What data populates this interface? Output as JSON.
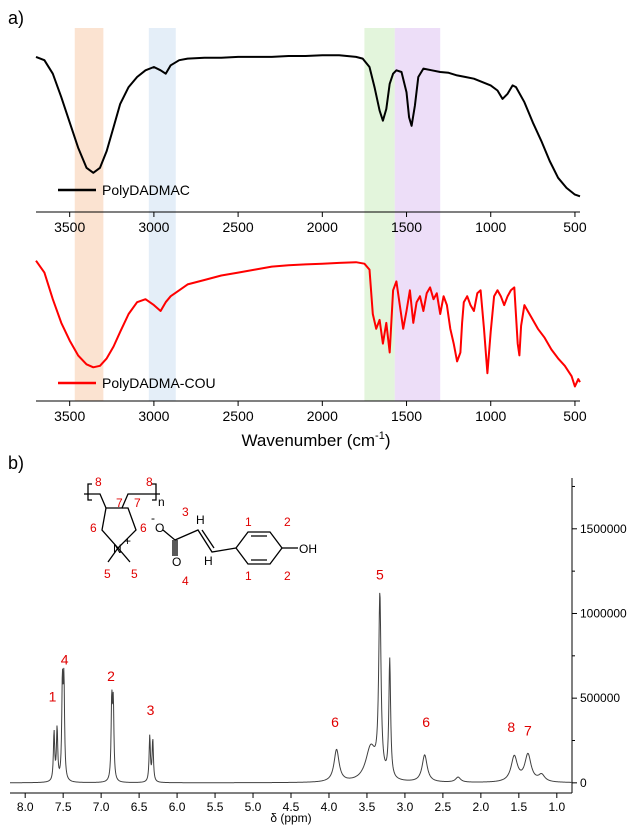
{
  "panel_a": {
    "label": "a)",
    "x_axis_label": "Wavenumber (cm",
    "x_axis_label_sup": "-1",
    "x_axis_label_close": ")",
    "highlight_colors": [
      "#f9d9c2",
      "#dbe8f6",
      "#d9f2d0",
      "#e7d3f5"
    ]
  },
  "panel_b": {
    "label": "b)",
    "x_axis_label": "δ (ppm)"
  },
  "molecule": {
    "atom_N": "N",
    "charge_plus": "+",
    "charge_minus": "-",
    "atom_O1": "O",
    "atom_O2": "O",
    "atom_H1": "H",
    "atom_H2": "H",
    "atom_OH": "OH",
    "subscript_n": "n",
    "num_8a": "8",
    "num_8b": "8",
    "num_7a": "7",
    "num_7b": "7",
    "num_6a": "6",
    "num_6b": "6",
    "num_5a": "5",
    "num_5b": "5",
    "num_3": "3",
    "num_4": "4",
    "num_1a": "1",
    "num_2a": "2",
    "num_1b": "1",
    "num_2b": "2"
  },
  "chart_data": [
    {
      "type": "line",
      "name": "FTIR PolyDADMAC",
      "x_reversed": true,
      "xlim": [
        3700,
        470
      ],
      "x_ticks": [
        3500,
        3000,
        2500,
        2000,
        1500,
        1000,
        500
      ],
      "y_ticks_shown": false,
      "color": "#000000",
      "series": [
        {
          "name": "PolyDADMAC",
          "x": [
            3700,
            3650,
            3600,
            3550,
            3500,
            3450,
            3400,
            3360,
            3320,
            3280,
            3240,
            3200,
            3150,
            3100,
            3050,
            3000,
            2960,
            2930,
            2900,
            2850,
            2800,
            2700,
            2600,
            2500,
            2400,
            2300,
            2200,
            2100,
            2000,
            1900,
            1800,
            1760,
            1720,
            1690,
            1660,
            1640,
            1620,
            1600,
            1580,
            1560,
            1530,
            1500,
            1485,
            1470,
            1450,
            1430,
            1400,
            1350,
            1300,
            1250,
            1200,
            1150,
            1100,
            1050,
            1000,
            960,
            930,
            900,
            870,
            850,
            800,
            750,
            700,
            650,
            600,
            550,
            500,
            470
          ],
          "y": [
            0.84,
            0.82,
            0.74,
            0.6,
            0.45,
            0.3,
            0.18,
            0.15,
            0.18,
            0.28,
            0.42,
            0.56,
            0.66,
            0.72,
            0.76,
            0.78,
            0.76,
            0.74,
            0.79,
            0.82,
            0.83,
            0.835,
            0.835,
            0.84,
            0.84,
            0.84,
            0.845,
            0.845,
            0.85,
            0.85,
            0.84,
            0.83,
            0.78,
            0.66,
            0.52,
            0.46,
            0.53,
            0.68,
            0.74,
            0.76,
            0.75,
            0.63,
            0.48,
            0.43,
            0.55,
            0.72,
            0.77,
            0.76,
            0.75,
            0.745,
            0.73,
            0.72,
            0.71,
            0.69,
            0.67,
            0.64,
            0.59,
            0.62,
            0.67,
            0.66,
            0.57,
            0.45,
            0.34,
            0.22,
            0.12,
            0.06,
            0.02,
            0.01
          ]
        }
      ]
    },
    {
      "type": "line",
      "name": "FTIR PolyDADMA-COU",
      "x_reversed": true,
      "xlim": [
        3700,
        470
      ],
      "x_ticks": [
        3500,
        3000,
        2500,
        2000,
        1500,
        1000,
        500
      ],
      "y_ticks_shown": false,
      "color": "#ff0000",
      "series": [
        {
          "name": "PolyDADMA-COU",
          "x": [
            3700,
            3650,
            3600,
            3550,
            3500,
            3450,
            3400,
            3360,
            3320,
            3280,
            3240,
            3200,
            3150,
            3100,
            3050,
            3000,
            2960,
            2930,
            2900,
            2850,
            2800,
            2700,
            2600,
            2500,
            2400,
            2300,
            2200,
            2100,
            2000,
            1900,
            1800,
            1750,
            1720,
            1700,
            1680,
            1660,
            1640,
            1620,
            1600,
            1580,
            1560,
            1540,
            1520,
            1500,
            1480,
            1460,
            1440,
            1420,
            1400,
            1380,
            1360,
            1340,
            1320,
            1300,
            1280,
            1260,
            1240,
            1220,
            1200,
            1180,
            1170,
            1160,
            1140,
            1120,
            1100,
            1080,
            1060,
            1040,
            1020,
            1000,
            980,
            960,
            940,
            920,
            900,
            880,
            860,
            840,
            830,
            820,
            800,
            760,
            720,
            680,
            640,
            600,
            560,
            520,
            500,
            480,
            470
          ],
          "y": [
            0.86,
            0.78,
            0.6,
            0.44,
            0.32,
            0.22,
            0.16,
            0.14,
            0.15,
            0.2,
            0.28,
            0.38,
            0.5,
            0.58,
            0.6,
            0.56,
            0.52,
            0.58,
            0.62,
            0.66,
            0.7,
            0.73,
            0.76,
            0.78,
            0.8,
            0.82,
            0.83,
            0.835,
            0.84,
            0.845,
            0.85,
            0.84,
            0.8,
            0.5,
            0.4,
            0.46,
            0.3,
            0.44,
            0.24,
            0.66,
            0.72,
            0.56,
            0.4,
            0.52,
            0.66,
            0.44,
            0.58,
            0.62,
            0.52,
            0.64,
            0.68,
            0.6,
            0.64,
            0.5,
            0.62,
            0.56,
            0.4,
            0.3,
            0.18,
            0.24,
            0.44,
            0.58,
            0.62,
            0.56,
            0.52,
            0.64,
            0.66,
            0.4,
            0.1,
            0.38,
            0.62,
            0.66,
            0.62,
            0.56,
            0.62,
            0.66,
            0.68,
            0.3,
            0.22,
            0.42,
            0.56,
            0.48,
            0.4,
            0.34,
            0.26,
            0.2,
            0.15,
            0.08,
            0.01,
            0.06,
            0.04
          ]
        }
      ]
    },
    {
      "type": "line",
      "name": "1H NMR",
      "x_reversed": true,
      "xlim": [
        8.2,
        0.8
      ],
      "ylim": [
        -60000,
        1800000
      ],
      "x_ticks": [
        8.0,
        7.5,
        7.0,
        6.5,
        6.0,
        5.5,
        5.0,
        4.5,
        4.0,
        3.5,
        3.0,
        2.5,
        2.0,
        1.5,
        1.0
      ],
      "x_tick_labels": [
        "8.0",
        "7.5",
        "7.0",
        "6.5",
        "6.0",
        "5.5",
        "5.0",
        "4.5",
        "4.0",
        "3.5",
        "3.0",
        "2.5",
        "2.0",
        "1.5",
        "1.0"
      ],
      "y_ticks": [
        0,
        500000,
        1000000,
        1500000
      ],
      "y_tick_labels": [
        "0",
        "500000",
        "1000000",
        "1500000"
      ],
      "y_axis_side": "right",
      "color": "#404040",
      "peaks": [
        {
          "x": 7.62,
          "height": 290000,
          "width": 0.01
        },
        {
          "x": 7.58,
          "height": 310000,
          "width": 0.01
        },
        {
          "x": 7.51,
          "height": 560000,
          "width": 0.01
        },
        {
          "x": 7.49,
          "height": 560000,
          "width": 0.01
        },
        {
          "x": 6.86,
          "height": 470000,
          "width": 0.01
        },
        {
          "x": 6.84,
          "height": 440000,
          "width": 0.01
        },
        {
          "x": 6.36,
          "height": 270000,
          "width": 0.01
        },
        {
          "x": 6.32,
          "height": 250000,
          "width": 0.01
        },
        {
          "x": 3.9,
          "height": 190000,
          "width": 0.04
        },
        {
          "x": 3.45,
          "height": 200000,
          "width": 0.08
        },
        {
          "x": 3.33,
          "height": 1060000,
          "width": 0.018
        },
        {
          "x": 3.2,
          "height": 700000,
          "width": 0.014
        },
        {
          "x": 2.74,
          "height": 160000,
          "width": 0.04
        },
        {
          "x": 2.3,
          "height": 30000,
          "width": 0.04
        },
        {
          "x": 1.56,
          "height": 150000,
          "width": 0.05
        },
        {
          "x": 1.38,
          "height": 160000,
          "width": 0.05
        },
        {
          "x": 1.2,
          "height": 40000,
          "width": 0.05
        }
      ],
      "peak_labels": [
        {
          "text": "1",
          "x": 7.64,
          "y": 480000
        },
        {
          "text": "4",
          "x": 7.48,
          "y": 700000
        },
        {
          "text": "2",
          "x": 6.87,
          "y": 600000
        },
        {
          "text": "3",
          "x": 6.35,
          "y": 400000
        },
        {
          "text": "6",
          "x": 3.92,
          "y": 330000
        },
        {
          "text": "5",
          "x": 3.33,
          "y": 1200000
        },
        {
          "text": "6",
          "x": 2.72,
          "y": 330000
        },
        {
          "text": "8",
          "x": 1.6,
          "y": 300000
        },
        {
          "text": "7",
          "x": 1.38,
          "y": 280000
        }
      ]
    }
  ],
  "legend_a1": "PolyDADMAC",
  "legend_a2": "PolyDADMA-COU"
}
